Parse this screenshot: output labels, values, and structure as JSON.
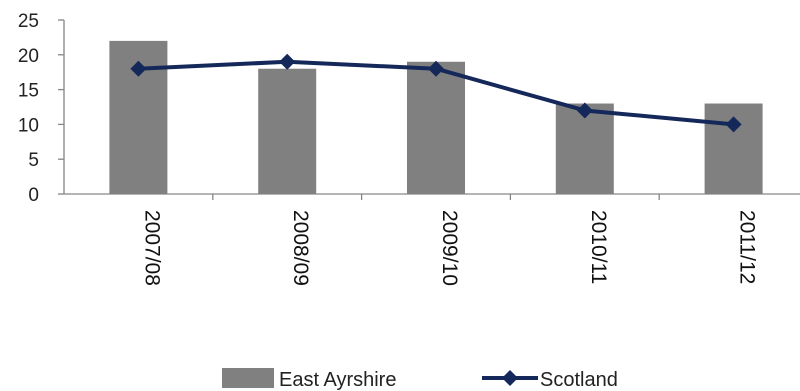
{
  "chart_data": {
    "type": "bar",
    "categories": [
      "2007/08",
      "2008/09",
      "2009/10",
      "2010/11",
      "2011/12"
    ],
    "series": [
      {
        "name": "East Ayrshire",
        "type": "bar",
        "values": [
          22,
          18,
          19,
          13,
          13
        ],
        "color": "#808080"
      },
      {
        "name": "Scotland",
        "type": "line",
        "marker": "diamond",
        "values": [
          18,
          19,
          18,
          12,
          10
        ],
        "color": "#14285a"
      }
    ],
    "title": "",
    "xlabel": "",
    "ylabel": "",
    "ylim": [
      0,
      25
    ],
    "yticks": [
      0,
      5,
      10,
      15,
      20,
      25
    ],
    "grid": false,
    "legend_position": "bottom",
    "category_label_rotation": "rotated 90 degrees"
  }
}
